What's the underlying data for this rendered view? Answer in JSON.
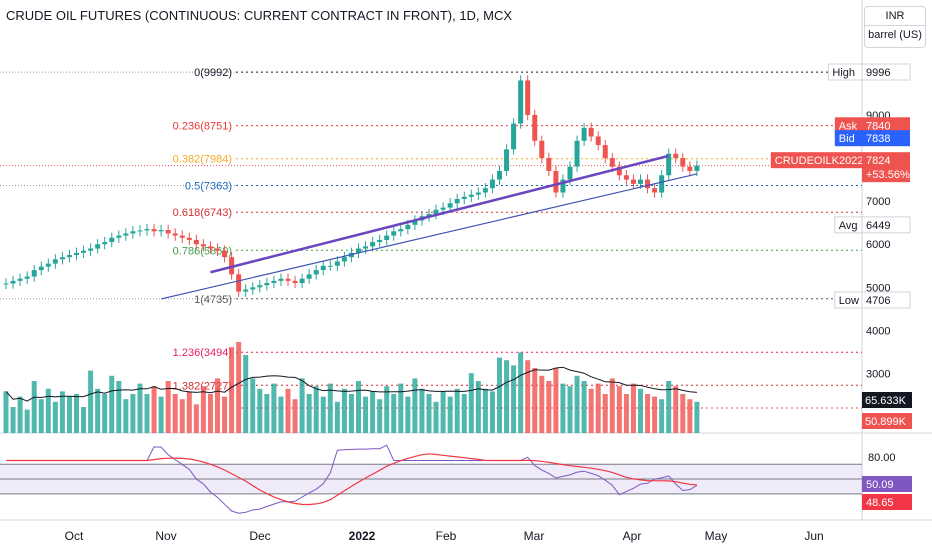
{
  "title": "CRUDE OIL FUTURES (CONTINUOUS: CURRENT CONTRACT IN FRONT), 1D, MCX",
  "unit_selector": {
    "currency": "INR",
    "unit": "barrel (US)"
  },
  "colors": {
    "up": "#26a69a",
    "down": "#ef5350",
    "trend": "#6b46c1",
    "trend2": "#3f51b5",
    "rsi_line": "#7e57c2",
    "rsi_ma": "#f23645",
    "vol_ma": "#131722"
  },
  "chart_data": {
    "type": "candlestick",
    "x_axis": {
      "labels": [
        "Oct",
        "Nov",
        "Dec",
        "2022",
        "Feb",
        "Mar",
        "Apr",
        "May",
        "Jun"
      ]
    },
    "price_axis": {
      "ticks": [
        9000,
        8000,
        7000,
        6000,
        5000,
        4000,
        3000
      ]
    },
    "price_series": {
      "open": [
        5080,
        5090,
        5150,
        5200,
        5250,
        5400,
        5480,
        5550,
        5650,
        5700,
        5750,
        5800,
        5850,
        5900,
        6000,
        6050,
        6150,
        6200,
        6250,
        6300,
        6320,
        6350,
        6300,
        6330,
        6250,
        6200,
        6150,
        6100,
        6000,
        5950,
        5900,
        5850,
        5700,
        5300,
        4900,
        4950,
        5000,
        5050,
        5100,
        5150,
        5200,
        5150,
        5100,
        5200,
        5300,
        5400,
        5500,
        5500,
        5600,
        5700,
        5800,
        5900,
        5950,
        6050,
        6100,
        6200,
        6300,
        6350,
        6450,
        6550,
        6650,
        6700,
        6800,
        6850,
        6950,
        7050,
        7100,
        7150,
        7200,
        7300,
        7500,
        7700,
        8200,
        8800,
        9800,
        9000,
        8400,
        8000,
        7700,
        7200,
        7500,
        7800,
        8400,
        8700,
        8500,
        8300,
        8000,
        7800,
        7600,
        7500,
        7400,
        7500,
        7300,
        7200,
        7600,
        8100,
        8000,
        7800,
        7700
      ],
      "close": [
        5090,
        5150,
        5200,
        5250,
        5400,
        5480,
        5550,
        5650,
        5700,
        5750,
        5800,
        5850,
        5900,
        6000,
        6050,
        6150,
        6200,
        6250,
        6300,
        6320,
        6350,
        6300,
        6330,
        6250,
        6200,
        6150,
        6100,
        6000,
        5950,
        5900,
        5850,
        5700,
        5300,
        4900,
        4950,
        5000,
        5050,
        5100,
        5150,
        5200,
        5150,
        5100,
        5200,
        5300,
        5400,
        5500,
        5500,
        5600,
        5700,
        5800,
        5900,
        5950,
        6050,
        6100,
        6200,
        6300,
        6350,
        6450,
        6550,
        6650,
        6700,
        6800,
        6850,
        6950,
        7050,
        7100,
        7150,
        7200,
        7300,
        7500,
        7700,
        8200,
        8800,
        9800,
        9000,
        8400,
        8000,
        7700,
        7200,
        7500,
        7800,
        8400,
        8700,
        8500,
        8300,
        8000,
        7800,
        7600,
        7500,
        7400,
        7500,
        7300,
        7200,
        7600,
        8100,
        8000,
        7800,
        7700,
        7824
      ],
      "current_price": 7824
    },
    "levels": [
      {
        "label": "0(9992)",
        "value": 9992,
        "color": "#131722"
      },
      {
        "label": "0.236(8751)",
        "value": 8751,
        "color": "#e53935"
      },
      {
        "label": "0.382(7984)",
        "value": 7984,
        "color": "#f9a825"
      },
      {
        "label": "0.5(7363)",
        "value": 7363,
        "color": "#1565c0"
      },
      {
        "label": "0.618(6743)",
        "value": 6743,
        "color": "#d32f2f"
      },
      {
        "label": "0.786(5860)",
        "value": 5860,
        "color": "#43a047"
      },
      {
        "label": "1(4735)",
        "value": 4735,
        "color": "#555555"
      },
      {
        "label": "1.236(3494)",
        "value": 3494,
        "color": "#e91e63"
      },
      {
        "label": "1.382(2727)",
        "value": 2727,
        "color": "#d32f2f"
      },
      {
        "label": "",
        "value": 2200,
        "color": "#ef5350"
      }
    ],
    "level_tags": [
      {
        "left": "High",
        "right": "9996",
        "value": 9996,
        "style": "plain"
      },
      {
        "left": "Ask",
        "right": "7840",
        "value": 8760,
        "style": "red"
      },
      {
        "left": "Bid",
        "right": "7838",
        "value": 8460,
        "style": "blue"
      },
      {
        "left": "CRUDEOILK2022",
        "right": "7824",
        "value": 7950,
        "style": "red",
        "sub": "+53.56%"
      },
      {
        "left": "Avg",
        "right": "6449",
        "value": 6449,
        "style": "plain"
      },
      {
        "left": "Low",
        "right": "4706",
        "value": 4706,
        "style": "plain"
      }
    ],
    "volume": {
      "values": [
        32,
        20,
        28,
        18,
        40,
        26,
        34,
        24,
        32,
        28,
        30,
        20,
        48,
        34,
        30,
        44,
        40,
        26,
        30,
        38,
        30,
        36,
        28,
        40,
        30,
        26,
        32,
        22,
        36,
        30,
        42,
        28,
        66,
        70,
        60,
        42,
        34,
        30,
        38,
        28,
        34,
        26,
        42,
        30,
        36,
        28,
        38,
        24,
        34,
        30,
        40,
        28,
        32,
        26,
        36,
        30,
        38,
        28,
        42,
        34,
        30,
        24,
        32,
        28,
        34,
        30,
        46,
        40,
        34,
        32,
        58,
        56,
        52,
        62,
        56,
        50,
        44,
        40,
        50,
        38,
        36,
        44,
        40,
        34,
        38,
        30,
        42,
        36,
        30,
        38,
        34,
        30,
        28,
        26,
        40,
        36,
        30,
        26,
        24
      ],
      "ma_label": "65.633K",
      "last_label": "50.899K",
      "ma_color": "#131722"
    },
    "rsi": {
      "ticks": [
        "80.00"
      ],
      "value_label": "50.09",
      "ma_label": "48.65",
      "upper": 70,
      "lower": 30,
      "mid": 50
    },
    "trendlines": [
      {
        "from": [
          29,
          5350
        ],
        "to": [
          94,
          8050
        ]
      },
      {
        "from": [
          22,
          4730
        ],
        "to": [
          98,
          7630
        ]
      }
    ]
  }
}
